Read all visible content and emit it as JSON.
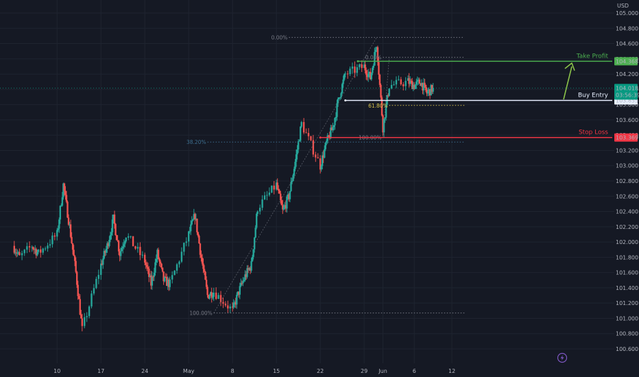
{
  "currency": "USD",
  "colors": {
    "background": "#151924",
    "grid": "#1f2430",
    "up": "#26a69a",
    "down": "#ef5350",
    "axis_text": "#b2b5be",
    "fib": "#787b86",
    "fib_blue": "#3d6e8f",
    "fib_yellow": "#d8c34a",
    "take_profit": "#4caf50",
    "stop_loss": "#f23645",
    "entry": "#e8f0ff",
    "current": "#089981",
    "annotation_arrow": "#8bc34a",
    "icon": "#7e57c2"
  },
  "chart_data": {
    "type": "candlestick",
    "x_ticks": [
      "10",
      "17",
      "24",
      "May",
      "8",
      "15",
      "22",
      "29",
      "Jun",
      "6",
      "12"
    ],
    "y_ticks": [
      "105.000",
      "104.800",
      "104.600",
      "104.400",
      "104.200",
      "104.000",
      "103.800",
      "103.600",
      "103.400",
      "103.200",
      "103.000",
      "102.800",
      "102.600",
      "102.400",
      "102.200",
      "102.000",
      "101.800",
      "101.600",
      "101.400",
      "101.200",
      "101.000",
      "100.800",
      "100.600"
    ],
    "y_range": [
      100.5,
      105.05
    ],
    "anchors": [
      {
        "date": "2023-04-03",
        "price": 101.95
      },
      {
        "date": "2023-04-04",
        "price": 101.8
      },
      {
        "date": "2023-04-06",
        "price": 101.95
      },
      {
        "date": "2023-04-07",
        "price": 101.85
      },
      {
        "date": "2023-04-10",
        "price": 102.1
      },
      {
        "date": "2023-04-11",
        "price": 102.75
      },
      {
        "date": "2023-04-12",
        "price": 102.2
      },
      {
        "date": "2023-04-13",
        "price": 101.6
      },
      {
        "date": "2023-04-14",
        "price": 100.85
      },
      {
        "date": "2023-04-17",
        "price": 101.7
      },
      {
        "date": "2023-04-18",
        "price": 101.95
      },
      {
        "date": "2023-04-19",
        "price": 102.3
      },
      {
        "date": "2023-04-20",
        "price": 101.85
      },
      {
        "date": "2023-04-21",
        "price": 102.1
      },
      {
        "date": "2023-04-24",
        "price": 101.75
      },
      {
        "date": "2023-04-25",
        "price": 101.45
      },
      {
        "date": "2023-04-26",
        "price": 101.85
      },
      {
        "date": "2023-04-27",
        "price": 101.5
      },
      {
        "date": "2023-04-28",
        "price": 101.45
      },
      {
        "date": "2023-05-01",
        "price": 102.1
      },
      {
        "date": "2023-05-02",
        "price": 102.35
      },
      {
        "date": "2023-05-03",
        "price": 101.8
      },
      {
        "date": "2023-05-04",
        "price": 101.3
      },
      {
        "date": "2023-05-05",
        "price": 101.35
      },
      {
        "date": "2023-05-08",
        "price": 101.1
      },
      {
        "date": "2023-05-09",
        "price": 101.35
      },
      {
        "date": "2023-05-10",
        "price": 101.55
      },
      {
        "date": "2023-05-11",
        "price": 101.7
      },
      {
        "date": "2023-05-12",
        "price": 102.45
      },
      {
        "date": "2023-05-15",
        "price": 102.75
      },
      {
        "date": "2023-05-16",
        "price": 102.4
      },
      {
        "date": "2023-05-17",
        "price": 102.6
      },
      {
        "date": "2023-05-18",
        "price": 103.05
      },
      {
        "date": "2023-05-19",
        "price": 103.55
      },
      {
        "date": "2023-05-22",
        "price": 103.0
      },
      {
        "date": "2023-05-23",
        "price": 103.3
      },
      {
        "date": "2023-05-24",
        "price": 103.5
      },
      {
        "date": "2023-05-25",
        "price": 103.9
      },
      {
        "date": "2023-05-26",
        "price": 104.2
      },
      {
        "date": "2023-05-29",
        "price": 104.3
      },
      {
        "date": "2023-05-30",
        "price": 104.15
      },
      {
        "date": "2023-05-31",
        "price": 104.6
      },
      {
        "date": "2023-06-01",
        "price": 103.5
      },
      {
        "date": "2023-06-02",
        "price": 104.05
      },
      {
        "date": "2023-06-05",
        "price": 104.1
      },
      {
        "date": "2023-06-06",
        "price": 104.05
      },
      {
        "date": "2023-06-07",
        "price": 104.1
      },
      {
        "date": "2023-06-08",
        "price": 103.95
      },
      {
        "date": "2023-06-09",
        "price": 104.018
      }
    ],
    "fibonacci": {
      "levels": [
        {
          "label": "0.00%",
          "price": 104.68,
          "from_date": "2023-05-17",
          "to_date": "2023-06-14",
          "color": "#787b86"
        },
        {
          "label": "38.20%",
          "price": 103.31,
          "from_date": "2023-05-04",
          "to_date": "2023-06-14",
          "color": "#3d6e8f"
        },
        {
          "label": "100.00%",
          "price": 101.07,
          "from_date": "2023-05-05",
          "to_date": "2023-06-14",
          "color": "#787b86"
        }
      ]
    },
    "fibonacci_small": {
      "levels": [
        {
          "label": "0.00%",
          "price": 104.42,
          "from_date": "2023-06-01",
          "to_date": "2023-06-14",
          "color": "#787b86"
        },
        {
          "label": "61.80%",
          "price": 103.79,
          "from_date": "2023-06-02",
          "to_date": "2023-06-14",
          "color": "#d8c34a"
        },
        {
          "label": "100.00%",
          "price": 103.37,
          "from_date": "2023-06-01",
          "to_date": "2023-06-14",
          "color": "#787b86"
        }
      ]
    },
    "levels": [
      {
        "name": "Take Profit",
        "price": 104.368,
        "label": "104.368",
        "color": "#4caf50",
        "from_date": "2023-05-28"
      },
      {
        "name": "Buy Entry",
        "price": 103.855,
        "label": "103.855",
        "color": "#e8f0ff",
        "from_date": "2023-05-26"
      },
      {
        "name": "Stop Loss",
        "price": 103.369,
        "label": "103.369",
        "color": "#f23645",
        "from_date": "2023-05-22"
      }
    ],
    "current_price": {
      "price": 104.018,
      "label": "104.018",
      "countdown": "03:56:39"
    }
  }
}
